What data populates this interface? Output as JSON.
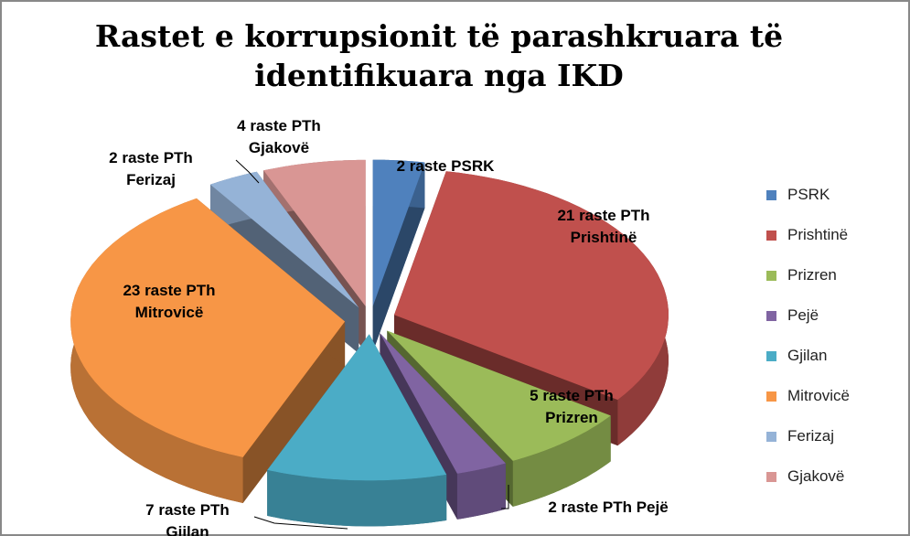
{
  "chart_data": {
    "type": "pie3d",
    "title": "Rastet e korrupsionit të parashkruara të identifikuara nga IKD",
    "categories": [
      "PSRK",
      "Prishtinë",
      "Prizren",
      "Pejë",
      "Gjilan",
      "Mitrovicë",
      "Ferizaj",
      "Gjakovë"
    ],
    "values": [
      2,
      21,
      5,
      2,
      7,
      23,
      2,
      4
    ],
    "value_labels": [
      "2 raste PSRK",
      "21 raste PTh Prishtinë",
      "5 raste PTh Prizren",
      "2 raste PTh Pejë",
      "7 raste PTh Gjilan",
      "23 raste PTh Mitrovicë",
      "2 raste PTh Ferizaj",
      "4 raste PTh Gjakovë"
    ],
    "colors": [
      "#4f81bd",
      "#c0504d",
      "#9bbb59",
      "#8064a2",
      "#4bacc6",
      "#f79646",
      "#95b3d7",
      "#d99694"
    ],
    "legend": "right"
  }
}
